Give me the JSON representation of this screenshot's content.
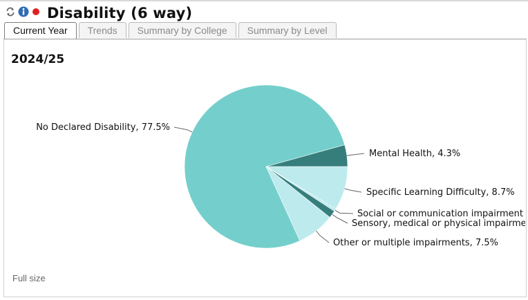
{
  "header": {
    "title": "Disability (6 way)",
    "icons": [
      "refresh-icon",
      "info-icon",
      "status-dot-icon"
    ],
    "status_color": "#e02020",
    "info_color": "#2f6db5"
  },
  "tabs": [
    {
      "label": "Current Year",
      "active": true
    },
    {
      "label": "Trends",
      "active": false
    },
    {
      "label": "Summary by College",
      "active": false
    },
    {
      "label": "Summary by Level",
      "active": false
    }
  ],
  "panel": {
    "year": "2024/25",
    "full_size_link": "Full size"
  },
  "chart_data": {
    "type": "pie",
    "title": "2024/25",
    "slices": [
      {
        "label": "Mental Health, 4.3%",
        "name": "Mental Health",
        "value": 4.3,
        "color": "#367e7c"
      },
      {
        "label": "Specific Learning Difficulty, 8.7%",
        "name": "Specific Learning Difficulty",
        "value": 8.7,
        "color": "#bdeaed"
      },
      {
        "label": "Social or communication impairment",
        "name": "Social or communication impairment",
        "value": 0.5,
        "color": "#bdeaed"
      },
      {
        "label": "Sensory, medical or physical impairme",
        "name": "Sensory, medical or physical impairment",
        "value": 1.5,
        "color": "#367e7c"
      },
      {
        "label": "Other or multiple impairments, 7.5%",
        "name": "Other or multiple impairments",
        "value": 7.5,
        "color": "#bdeaed"
      },
      {
        "label": "No Declared Disability, 77.5%",
        "name": "No Declared Disability",
        "value": 77.5,
        "color": "#74cfcc"
      }
    ]
  }
}
